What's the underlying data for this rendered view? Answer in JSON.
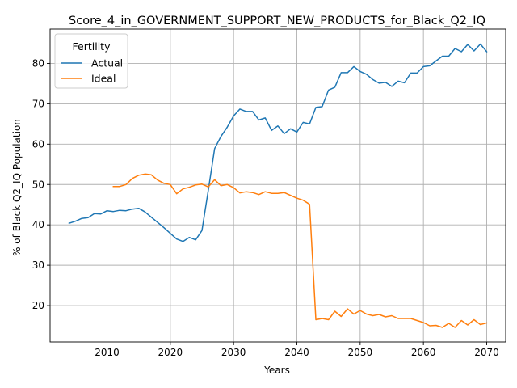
{
  "chart_data": {
    "type": "line",
    "title": "Score_4_in_GOVERNMENT_SUPPORT_NEW_PRODUCTS_for_Black_Q2_IQ",
    "xlabel": "Years",
    "ylabel": "% of Black Q2_IQ Population",
    "xlim": [
      2001,
      2073
    ],
    "ylim": [
      11,
      88.5
    ],
    "xticks": [
      2010,
      2020,
      2030,
      2040,
      2050,
      2060,
      2070
    ],
    "yticks": [
      20,
      30,
      40,
      50,
      60,
      70,
      80
    ],
    "grid": true,
    "legend": {
      "title": "Fertility",
      "placement": "top-left"
    },
    "series": [
      {
        "name": "Actual",
        "color": "#1f77b4",
        "x": [
          2004,
          2005,
          2006,
          2007,
          2008,
          2009,
          2010,
          2011,
          2012,
          2013,
          2014,
          2015,
          2016,
          2017,
          2018,
          2019,
          2020,
          2021,
          2022,
          2023,
          2024,
          2025,
          2026,
          2027,
          2028,
          2029,
          2030,
          2031,
          2032,
          2033,
          2034,
          2035,
          2036,
          2037,
          2038,
          2039,
          2040,
          2041,
          2042,
          2043,
          2044,
          2045,
          2046,
          2047,
          2048,
          2049,
          2050,
          2051,
          2052,
          2053,
          2054,
          2055,
          2056,
          2057,
          2058,
          2059,
          2060,
          2061,
          2062,
          2063,
          2064,
          2065,
          2066,
          2067,
          2068,
          2069,
          2070
        ],
        "values": [
          40.4,
          40.9,
          41.6,
          41.8,
          42.8,
          42.7,
          43.5,
          43.3,
          43.6,
          43.5,
          43.9,
          44.1,
          43.2,
          41.9,
          40.6,
          39.3,
          37.9,
          36.5,
          35.9,
          36.9,
          36.3,
          38.6,
          48.5,
          58.9,
          61.9,
          64.2,
          67.0,
          68.7,
          68.1,
          68.1,
          66.0,
          66.5,
          63.4,
          64.5,
          62.6,
          63.8,
          63.0,
          65.4,
          65.0,
          69.1,
          69.3,
          73.4,
          74.1,
          77.7,
          77.7,
          79.2,
          78.0,
          77.3,
          76.0,
          75.1,
          75.3,
          74.3,
          75.6,
          75.2,
          77.6,
          77.6,
          79.2,
          79.4,
          80.6,
          81.8,
          81.8,
          83.7,
          82.9,
          84.7,
          83.1,
          84.8,
          82.9
        ]
      },
      {
        "name": "Ideal",
        "color": "#ff7f0e",
        "x": [
          2011,
          2012,
          2013,
          2014,
          2015,
          2016,
          2017,
          2018,
          2019,
          2020,
          2021,
          2022,
          2023,
          2024,
          2025,
          2026,
          2027,
          2028,
          2029,
          2030,
          2031,
          2032,
          2033,
          2034,
          2035,
          2036,
          2037,
          2038,
          2039,
          2040,
          2041,
          2042,
          2043,
          2044,
          2045,
          2046,
          2047,
          2048,
          2049,
          2050,
          2051,
          2052,
          2053,
          2054,
          2055,
          2056,
          2057,
          2058,
          2059,
          2060,
          2061,
          2062,
          2063,
          2064,
          2065,
          2066,
          2067,
          2068,
          2069,
          2070
        ],
        "values": [
          49.5,
          49.5,
          50.0,
          51.5,
          52.3,
          52.6,
          52.4,
          51.1,
          50.3,
          50.0,
          47.7,
          48.9,
          49.3,
          49.9,
          50.1,
          49.4,
          51.2,
          49.7,
          50.0,
          49.2,
          47.9,
          48.2,
          48.0,
          47.5,
          48.2,
          47.8,
          47.8,
          48.0,
          47.3,
          46.6,
          46.1,
          45.1,
          16.5,
          16.8,
          16.5,
          18.6,
          17.3,
          19.2,
          17.9,
          18.8,
          17.9,
          17.5,
          17.8,
          17.2,
          17.5,
          16.8,
          16.8,
          16.8,
          16.3,
          15.8,
          15.0,
          15.1,
          14.6,
          15.6,
          14.6,
          16.3,
          15.2,
          16.5,
          15.3,
          15.7
        ]
      }
    ]
  }
}
